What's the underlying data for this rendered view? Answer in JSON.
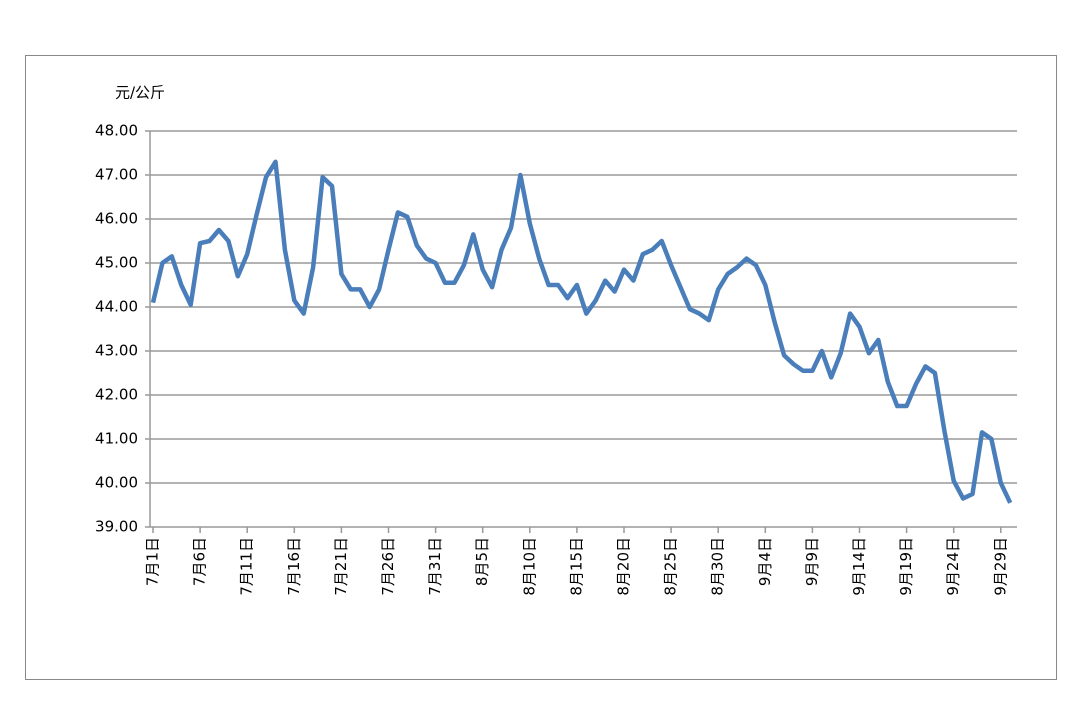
{
  "chart_data": {
    "type": "line",
    "y_label": "元/公斤",
    "categories": [
      "7月1日",
      null,
      null,
      null,
      null,
      "7月6日",
      null,
      null,
      null,
      null,
      "7月11日",
      null,
      null,
      null,
      null,
      "7月16日",
      null,
      null,
      null,
      null,
      "7月21日",
      null,
      null,
      null,
      null,
      "7月26日",
      null,
      null,
      null,
      null,
      "7月31日",
      null,
      null,
      null,
      null,
      "8月5日",
      null,
      null,
      null,
      null,
      "8月10日",
      null,
      null,
      null,
      null,
      "8月15日",
      null,
      null,
      null,
      null,
      "8月20日",
      null,
      null,
      null,
      null,
      "8月25日",
      null,
      null,
      null,
      null,
      "8月30日",
      null,
      null,
      null,
      null,
      "9月4日",
      null,
      null,
      null,
      null,
      "9月9日",
      null,
      null,
      null,
      null,
      "9月14日",
      null,
      null,
      null,
      null,
      "9月19日",
      null,
      null,
      null,
      null,
      "9月24日",
      null,
      null,
      null,
      null,
      "9月29日",
      null
    ],
    "series": [
      {
        "color": "#4a7ebb",
        "values": [
          44.1,
          45.0,
          45.15,
          44.5,
          44.05,
          45.45,
          45.5,
          45.75,
          45.5,
          44.7,
          45.2,
          46.1,
          46.95,
          47.3,
          45.3,
          44.15,
          43.85,
          44.9,
          46.95,
          46.75,
          44.75,
          44.4,
          44.4,
          44.0,
          44.4,
          45.3,
          46.15,
          46.05,
          45.4,
          45.1,
          45.0,
          44.55,
          44.55,
          44.95,
          45.65,
          44.85,
          44.45,
          45.3,
          45.8,
          47.0,
          45.9,
          45.1,
          44.5,
          44.5,
          44.2,
          44.5,
          43.85,
          44.15,
          44.6,
          44.35,
          44.85,
          44.6,
          45.2,
          45.3,
          45.5,
          44.95,
          44.45,
          43.95,
          43.85,
          43.7,
          44.4,
          44.75,
          44.9,
          45.1,
          44.95,
          44.5,
          43.65,
          42.9,
          42.7,
          42.55,
          42.55,
          43.0,
          42.4,
          42.95,
          43.85,
          43.55,
          42.95,
          43.25,
          42.3,
          41.75,
          41.75,
          42.25,
          42.65,
          42.5,
          41.2,
          40.05,
          39.65,
          39.75,
          41.15,
          41.0,
          40.0,
          39.55
        ]
      }
    ],
    "ylim": [
      39,
      48
    ],
    "yticks": [
      {
        "value": 39,
        "label": "39.00"
      },
      {
        "value": 40,
        "label": "40.00"
      },
      {
        "value": 41,
        "label": "41.00"
      },
      {
        "value": 42,
        "label": "42.00"
      },
      {
        "value": 43,
        "label": "43.00"
      },
      {
        "value": 44,
        "label": "44.00"
      },
      {
        "value": 45,
        "label": "45.00"
      },
      {
        "value": 46,
        "label": "46.00"
      },
      {
        "value": 47,
        "label": "47.00"
      },
      {
        "value": 48,
        "label": "48.00"
      }
    ],
    "grid": true
  }
}
